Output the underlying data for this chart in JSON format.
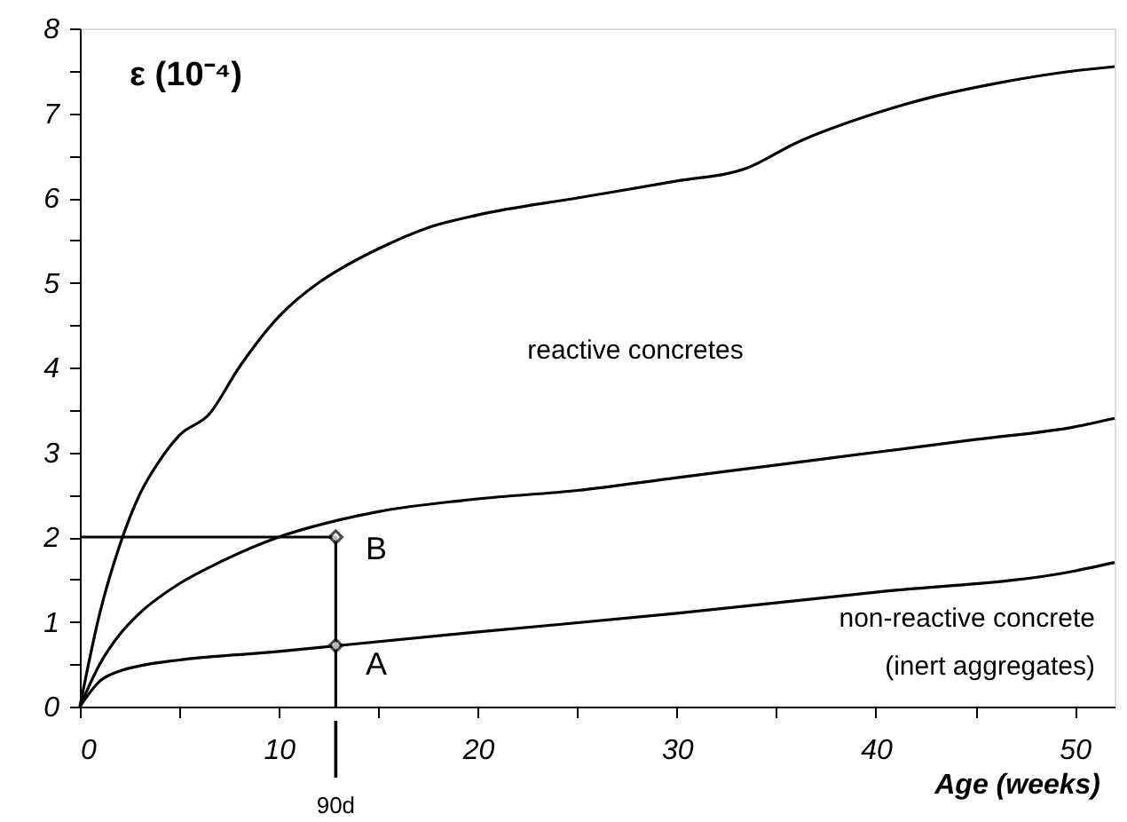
{
  "chart_data": {
    "type": "line",
    "ylabel": "ε (10⁻⁴)",
    "xlabel": "Age (weeks)",
    "xlim": [
      0,
      52
    ],
    "ylim": [
      0,
      8
    ],
    "xticks": [
      0,
      {
        "value": 5,
        "label": null
      },
      10,
      {
        "value": 15,
        "label": null
      },
      20,
      {
        "value": 25,
        "label": null
      },
      30,
      {
        "value": 35,
        "label": null
      },
      40,
      {
        "value": 45,
        "label": null
      },
      50
    ],
    "yticks": [
      0,
      {
        "value": 0.5,
        "label": null
      },
      1,
      {
        "value": 1.5,
        "label": null
      },
      2,
      {
        "value": 2.5,
        "label": null
      },
      3,
      {
        "value": 3.5,
        "label": null
      },
      4,
      {
        "value": 4.5,
        "label": null
      },
      5,
      {
        "value": 5.5,
        "label": null
      },
      6,
      {
        "value": 6.5,
        "label": null
      },
      7,
      {
        "value": 7.5,
        "label": null
      },
      8
    ],
    "grid": false,
    "marker": "none",
    "line_style": "solid",
    "series": [
      {
        "color": "#000000",
        "x": [
          0,
          1,
          2,
          3,
          4,
          5,
          6.5,
          8,
          10,
          12,
          13,
          15,
          17.5,
          20,
          25,
          30,
          33.5,
          36,
          40,
          43,
          46,
          50,
          52
        ],
        "values": [
          0,
          1.1,
          1.9,
          2.5,
          2.9,
          3.2,
          3.45,
          4.0,
          4.6,
          5.0,
          5.15,
          5.4,
          5.65,
          5.8,
          6.0,
          6.2,
          6.35,
          6.65,
          7.0,
          7.2,
          7.35,
          7.5,
          7.55
        ]
      },
      {
        "color": "#000000",
        "x": [
          0,
          1,
          2,
          3,
          5,
          7,
          10,
          13,
          15,
          20,
          25,
          30,
          35,
          40,
          45,
          50,
          52
        ],
        "values": [
          0,
          0.5,
          0.85,
          1.1,
          1.45,
          1.7,
          2.0,
          2.2,
          2.3,
          2.45,
          2.55,
          2.7,
          2.85,
          3.0,
          3.15,
          3.3,
          3.4
        ]
      },
      {
        "color": "#000000",
        "x": [
          0,
          1,
          2,
          3,
          5,
          10,
          13,
          20,
          30,
          40,
          50,
          52
        ],
        "values": [
          0,
          0.3,
          0.42,
          0.48,
          0.55,
          0.65,
          0.72,
          0.88,
          1.1,
          1.35,
          1.6,
          1.7
        ]
      },
      {
        "color": "#000000",
        "x": [
          0,
          12.86,
          12.86
        ],
        "values": [
          2,
          2,
          0
        ]
      },
      {
        "type": "scatter",
        "marker": "diamond",
        "color": "#000000",
        "x": [
          12.86,
          12.86
        ],
        "values": [
          0.72,
          2.0
        ]
      }
    ],
    "annotations": [
      "reactive concretes",
      "non-reactive concrete",
      "(inert aggregates)",
      "B",
      "A",
      {
        "text": "90d",
        "x": 12.86
      }
    ]
  }
}
